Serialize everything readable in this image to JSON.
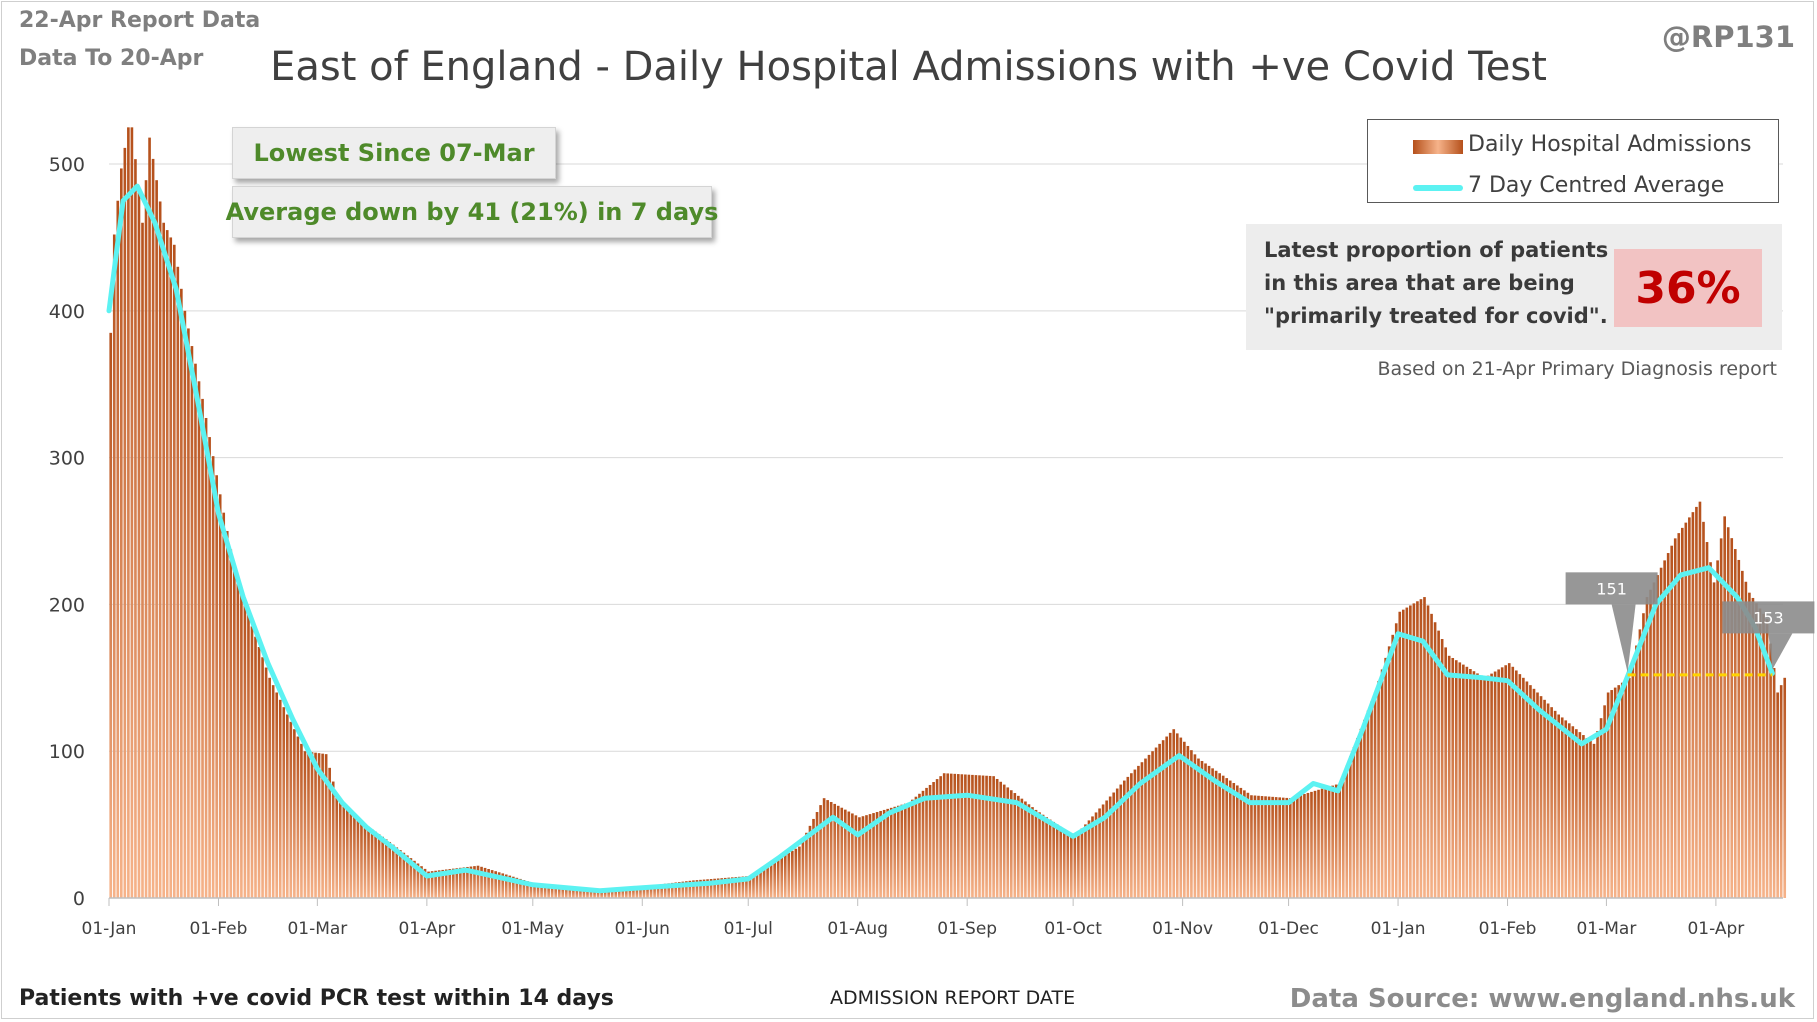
{
  "header": {
    "report_date": "22-Apr Report Data",
    "data_to": "Data To 20-Apr",
    "handle": "@RP131"
  },
  "footer": {
    "left_note": "Patients with +ve covid PCR test within 14 days",
    "source": "Data Source: www.england.nhs.uk"
  },
  "callouts": {
    "lowest": "Lowest Since 07-Mar",
    "average": "Average down by 41 (21%) in 7 days"
  },
  "info_box": {
    "line1": "Latest proportion of patients",
    "line2": "in this area that are being",
    "line3": "\"primarily treated for covid\".",
    "percentage": "36%",
    "note": "Based on 21-Apr Primary Diagnosis report"
  },
  "colors": {
    "bar_dark": "#b5501b",
    "bar_light": "#f6b38a",
    "average_line": "#5cf2f2",
    "reference_line": "#ffd400",
    "flag": "#8c8c8c",
    "percentage_text": "#c00000"
  },
  "chart_data": {
    "type": "bar",
    "title": "East of England - Daily Hospital Admissions with +ve Covid Test",
    "xlabel": "ADMISSION REPORT DATE",
    "ylabel": "",
    "ylim": [
      0,
      530
    ],
    "yticks": [
      0,
      100,
      200,
      300,
      400,
      500
    ],
    "x_start": "2021-01-01",
    "x_end": "2022-04-20",
    "xticks": [
      {
        "label": "01-Jan",
        "date": "2021-01-01"
      },
      {
        "label": "01-Feb",
        "date": "2021-02-01"
      },
      {
        "label": "01-Mar",
        "date": "2021-03-01"
      },
      {
        "label": "01-Apr",
        "date": "2021-04-01"
      },
      {
        "label": "01-May",
        "date": "2021-05-01"
      },
      {
        "label": "01-Jun",
        "date": "2021-06-01"
      },
      {
        "label": "01-Jul",
        "date": "2021-07-01"
      },
      {
        "label": "01-Aug",
        "date": "2021-08-01"
      },
      {
        "label": "01-Sep",
        "date": "2021-09-01"
      },
      {
        "label": "01-Oct",
        "date": "2021-10-01"
      },
      {
        "label": "01-Nov",
        "date": "2021-11-01"
      },
      {
        "label": "01-Dec",
        "date": "2021-12-01"
      },
      {
        "label": "01-Jan",
        "date": "2022-01-01"
      },
      {
        "label": "01-Feb",
        "date": "2022-02-01"
      },
      {
        "label": "01-Mar",
        "date": "2022-03-01"
      },
      {
        "label": "01-Apr",
        "date": "2022-04-01"
      }
    ],
    "grid": true,
    "legend": "top-right",
    "series": [
      {
        "name": "Daily Hospital Admissions",
        "type": "bar",
        "points": [
          {
            "date": "2021-01-01",
            "value": 385
          },
          {
            "date": "2021-01-02",
            "value": 452
          },
          {
            "date": "2021-01-03",
            "value": 475
          },
          {
            "date": "2021-01-04",
            "value": 497
          },
          {
            "date": "2021-01-06",
            "value": 525
          },
          {
            "date": "2021-01-07",
            "value": 525
          },
          {
            "date": "2021-01-10",
            "value": 460
          },
          {
            "date": "2021-01-12",
            "value": 518
          },
          {
            "date": "2021-01-16",
            "value": 460
          },
          {
            "date": "2021-01-19",
            "value": 445
          },
          {
            "date": "2021-01-22",
            "value": 400
          },
          {
            "date": "2021-01-27",
            "value": 340
          },
          {
            "date": "2021-02-01",
            "value": 275
          },
          {
            "date": "2021-02-05",
            "value": 225
          },
          {
            "date": "2021-02-10",
            "value": 185
          },
          {
            "date": "2021-02-15",
            "value": 150
          },
          {
            "date": "2021-02-20",
            "value": 125
          },
          {
            "date": "2021-02-25",
            "value": 100
          },
          {
            "date": "2021-03-03",
            "value": 98
          },
          {
            "date": "2021-03-06",
            "value": 70
          },
          {
            "date": "2021-03-13",
            "value": 52
          },
          {
            "date": "2021-03-20",
            "value": 40
          },
          {
            "date": "2021-04-01",
            "value": 18
          },
          {
            "date": "2021-04-15",
            "value": 22
          },
          {
            "date": "2021-05-01",
            "value": 10
          },
          {
            "date": "2021-05-20",
            "value": 5
          },
          {
            "date": "2021-06-01",
            "value": 8
          },
          {
            "date": "2021-06-15",
            "value": 12
          },
          {
            "date": "2021-07-01",
            "value": 15
          },
          {
            "date": "2021-07-15",
            "value": 35
          },
          {
            "date": "2021-07-22",
            "value": 68
          },
          {
            "date": "2021-08-01",
            "value": 55
          },
          {
            "date": "2021-08-15",
            "value": 65
          },
          {
            "date": "2021-08-25",
            "value": 85
          },
          {
            "date": "2021-09-08",
            "value": 83
          },
          {
            "date": "2021-09-20",
            "value": 60
          },
          {
            "date": "2021-10-01",
            "value": 42
          },
          {
            "date": "2021-10-15",
            "value": 80
          },
          {
            "date": "2021-10-29",
            "value": 115
          },
          {
            "date": "2021-11-05",
            "value": 95
          },
          {
            "date": "2021-11-20",
            "value": 70
          },
          {
            "date": "2021-12-01",
            "value": 68
          },
          {
            "date": "2021-12-15",
            "value": 78
          },
          {
            "date": "2021-12-25",
            "value": 140
          },
          {
            "date": "2022-01-01",
            "value": 195
          },
          {
            "date": "2022-01-08",
            "value": 205
          },
          {
            "date": "2022-01-15",
            "value": 165
          },
          {
            "date": "2022-01-25",
            "value": 150
          },
          {
            "date": "2022-02-01",
            "value": 160
          },
          {
            "date": "2022-02-15",
            "value": 125
          },
          {
            "date": "2022-02-25",
            "value": 105
          },
          {
            "date": "2022-03-01",
            "value": 140
          },
          {
            "date": "2022-03-07",
            "value": 150
          },
          {
            "date": "2022-03-12",
            "value": 205
          },
          {
            "date": "2022-03-20",
            "value": 245
          },
          {
            "date": "2022-03-27",
            "value": 270
          },
          {
            "date": "2022-03-31",
            "value": 215
          },
          {
            "date": "2022-04-03",
            "value": 260
          },
          {
            "date": "2022-04-10",
            "value": 208
          },
          {
            "date": "2022-04-15",
            "value": 190
          },
          {
            "date": "2022-04-18",
            "value": 140
          },
          {
            "date": "2022-04-20",
            "value": 150
          }
        ]
      },
      {
        "name": "7 Day Centred Average",
        "type": "line",
        "points": [
          {
            "date": "2021-01-01",
            "value": 400
          },
          {
            "date": "2021-01-05",
            "value": 475
          },
          {
            "date": "2021-01-09",
            "value": 485
          },
          {
            "date": "2021-01-14",
            "value": 460
          },
          {
            "date": "2021-01-20",
            "value": 415
          },
          {
            "date": "2021-01-26",
            "value": 340
          },
          {
            "date": "2021-02-01",
            "value": 262
          },
          {
            "date": "2021-02-08",
            "value": 205
          },
          {
            "date": "2021-02-15",
            "value": 160
          },
          {
            "date": "2021-02-22",
            "value": 122
          },
          {
            "date": "2021-03-01",
            "value": 88
          },
          {
            "date": "2021-03-08",
            "value": 65
          },
          {
            "date": "2021-03-15",
            "value": 48
          },
          {
            "date": "2021-03-22",
            "value": 35
          },
          {
            "date": "2021-04-01",
            "value": 15
          },
          {
            "date": "2021-04-12",
            "value": 19
          },
          {
            "date": "2021-05-01",
            "value": 9
          },
          {
            "date": "2021-05-20",
            "value": 5
          },
          {
            "date": "2021-06-01",
            "value": 7
          },
          {
            "date": "2021-06-20",
            "value": 10
          },
          {
            "date": "2021-07-01",
            "value": 13
          },
          {
            "date": "2021-07-10",
            "value": 28
          },
          {
            "date": "2021-07-25",
            "value": 55
          },
          {
            "date": "2021-08-01",
            "value": 43
          },
          {
            "date": "2021-08-10",
            "value": 58
          },
          {
            "date": "2021-08-20",
            "value": 68
          },
          {
            "date": "2021-09-01",
            "value": 70
          },
          {
            "date": "2021-09-15",
            "value": 65
          },
          {
            "date": "2021-10-01",
            "value": 42
          },
          {
            "date": "2021-10-10",
            "value": 55
          },
          {
            "date": "2021-10-20",
            "value": 78
          },
          {
            "date": "2021-10-31",
            "value": 97
          },
          {
            "date": "2021-11-10",
            "value": 80
          },
          {
            "date": "2021-11-20",
            "value": 65
          },
          {
            "date": "2021-12-01",
            "value": 65
          },
          {
            "date": "2021-12-08",
            "value": 78
          },
          {
            "date": "2021-12-15",
            "value": 73
          },
          {
            "date": "2021-12-22",
            "value": 115
          },
          {
            "date": "2022-01-01",
            "value": 180
          },
          {
            "date": "2022-01-08",
            "value": 175
          },
          {
            "date": "2022-01-15",
            "value": 152
          },
          {
            "date": "2022-01-25",
            "value": 150
          },
          {
            "date": "2022-02-01",
            "value": 148
          },
          {
            "date": "2022-02-10",
            "value": 128
          },
          {
            "date": "2022-02-22",
            "value": 105
          },
          {
            "date": "2022-03-01",
            "value": 115
          },
          {
            "date": "2022-03-07",
            "value": 151
          },
          {
            "date": "2022-03-15",
            "value": 200
          },
          {
            "date": "2022-03-22",
            "value": 220
          },
          {
            "date": "2022-03-30",
            "value": 225
          },
          {
            "date": "2022-04-07",
            "value": 205
          },
          {
            "date": "2022-04-12",
            "value": 185
          },
          {
            "date": "2022-04-17",
            "value": 153
          }
        ]
      }
    ],
    "annotations": [
      {
        "label": "151",
        "date": "2022-03-07",
        "value": 151
      },
      {
        "label": "153",
        "date": "2022-04-17",
        "value": 153
      }
    ],
    "reference_line": {
      "from": "2022-03-07",
      "to": "2022-04-17",
      "value": 152
    }
  }
}
